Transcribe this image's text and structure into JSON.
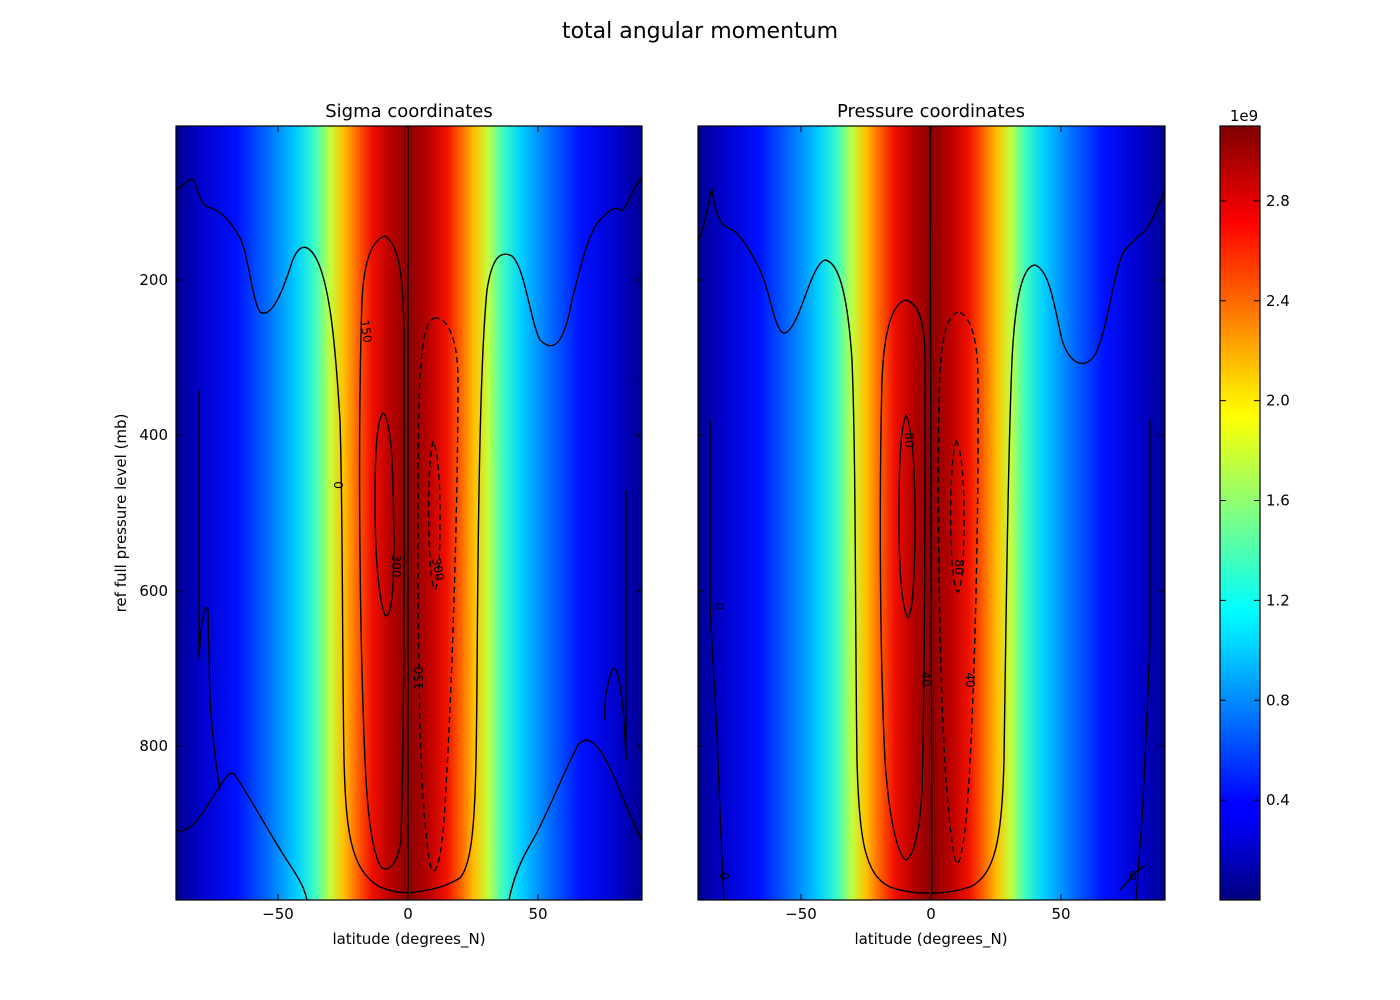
{
  "figure": {
    "suptitle": "total angular momentum"
  },
  "chart_data": [
    {
      "type": "heatmap",
      "title": "Sigma coordinates",
      "xlabel": "latitude (degrees_N)",
      "ylabel": "ref full pressure level (mb)",
      "xlim": [
        -90,
        90
      ],
      "ylim": [
        1000,
        0
      ],
      "xticks": [
        "−50",
        "0",
        "50"
      ],
      "yticks": [
        "200",
        "400",
        "600",
        "800"
      ],
      "colormap": "jet",
      "field": "total angular momentum, peak ~3.0e9 near 0° latitude, decreasing toward poles",
      "contour_labels": [
        "0",
        "150",
        "300",
        "300",
        "150"
      ],
      "contours": [
        {
          "value": 300,
          "style": "solid",
          "lat_range": [
            -13,
            -4
          ],
          "p_range": [
            370,
            630
          ]
        },
        {
          "value": 150,
          "style": "solid",
          "lat_range": [
            -18,
            -1
          ],
          "p_range": [
            230,
            870
          ]
        },
        {
          "value": 300,
          "style": "dashed",
          "lat_range": [
            6,
            13
          ],
          "p_range": [
            410,
            860
          ]
        },
        {
          "value": 150,
          "style": "dashed",
          "lat_range": [
            4,
            20
          ],
          "p_range": [
            245,
            860
          ]
        }
      ]
    },
    {
      "type": "heatmap",
      "title": "Pressure coordinates",
      "xlabel": "latitude (degrees_N)",
      "ylabel": "",
      "xlim": [
        -90,
        90
      ],
      "ylim": [
        1000,
        0
      ],
      "xticks": [
        "−50",
        "0",
        "50"
      ],
      "colormap": "jet",
      "field": "total angular momentum, peak ~3.0e9 near 0° latitude, decreasing toward poles",
      "contour_labels": [
        "0",
        "80",
        "40",
        "80",
        "40",
        "0",
        "0"
      ],
      "contours": [
        {
          "value": 80,
          "style": "solid",
          "lat_range": [
            -13,
            -6
          ],
          "p_range": [
            400,
            630
          ]
        },
        {
          "value": 40,
          "style": "solid",
          "lat_range": [
            -20,
            -2
          ],
          "p_range": [
            230,
            870
          ]
        },
        {
          "value": 80,
          "style": "dashed",
          "lat_range": [
            7,
            13
          ],
          "p_range": [
            410,
            860
          ]
        },
        {
          "value": 40,
          "style": "dashed",
          "lat_range": [
            4,
            18
          ],
          "p_range": [
            245,
            860
          ]
        }
      ]
    }
  ],
  "colorbar": {
    "exponent": "1e9",
    "min": 0.0,
    "max": 3.1,
    "ticks": [
      "0.4",
      "0.8",
      "1.2",
      "1.6",
      "2.0",
      "2.4",
      "2.8"
    ],
    "tick_values": [
      0.4,
      0.8,
      1.2,
      1.6,
      2.0,
      2.4,
      2.8
    ]
  }
}
